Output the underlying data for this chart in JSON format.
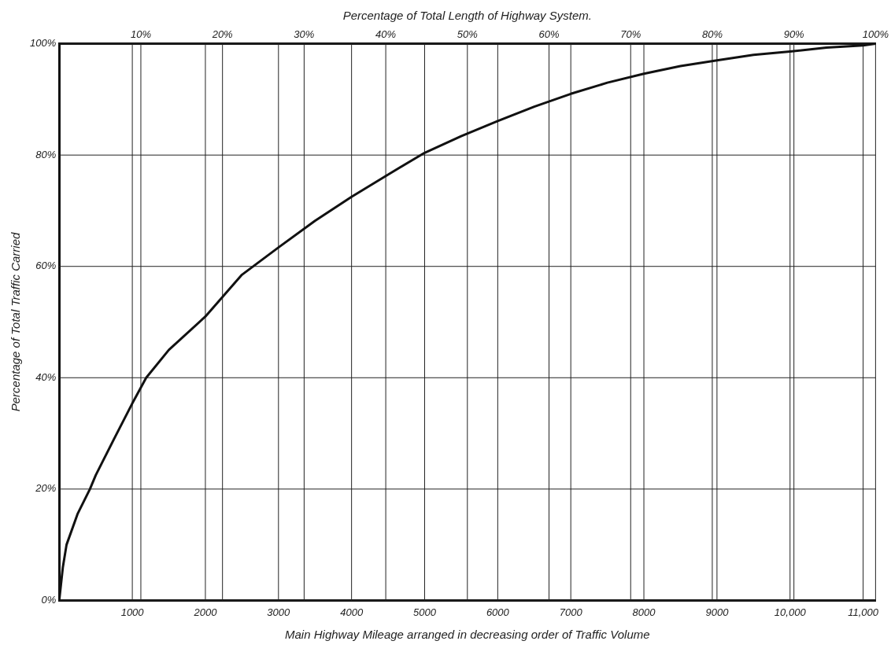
{
  "chart_data": {
    "type": "line",
    "x2label": "Percentage of Total Length of Highway System.",
    "xlabel": "Main Highway Mileage arranged in decreasing order of Traffic Volume",
    "ylabel": "Percentage of Total Traffic Carried",
    "x": [
      0,
      50,
      100,
      250,
      420,
      500,
      750,
      1000,
      1190,
      1500,
      2000,
      2500,
      3000,
      3500,
      4000,
      4500,
      5000,
      5500,
      6000,
      6500,
      7000,
      7500,
      8000,
      8500,
      9000,
      9500,
      10000,
      10500,
      11000,
      11170
    ],
    "series": [
      {
        "color": "#111111",
        "values": [
          0,
          6,
          10,
          15.5,
          20,
          22.5,
          29,
          35.4,
          40,
          45,
          51,
          58.5,
          63.4,
          68.2,
          72.5,
          76.5,
          80.4,
          83.4,
          86.1,
          88.7,
          91,
          93,
          94.6,
          96,
          97,
          98,
          98.6,
          99.3,
          99.7,
          100
        ]
      }
    ],
    "xlim": [
      0,
      11170
    ],
    "xticks": [
      {
        "value": 1000,
        "label": "1000"
      },
      {
        "value": 2000,
        "label": "2000"
      },
      {
        "value": 3000,
        "label": "3000"
      },
      {
        "value": 4000,
        "label": "4000"
      },
      {
        "value": 5000,
        "label": "5000"
      },
      {
        "value": 6000,
        "label": "6000"
      },
      {
        "value": 7000,
        "label": "7000"
      },
      {
        "value": 8000,
        "label": "8000"
      },
      {
        "value": 9000,
        "label": "9000"
      },
      {
        "value": 10000,
        "label": "10,000"
      },
      {
        "value": 11000,
        "label": "11,000"
      }
    ],
    "x2lim": [
      0,
      100
    ],
    "x2ticks": [
      {
        "value": 10,
        "label": "10%"
      },
      {
        "value": 20,
        "label": "20%"
      },
      {
        "value": 30,
        "label": "30%"
      },
      {
        "value": 40,
        "label": "40%"
      },
      {
        "value": 50,
        "label": "50%"
      },
      {
        "value": 60,
        "label": "60%"
      },
      {
        "value": 70,
        "label": "70%"
      },
      {
        "value": 80,
        "label": "80%"
      },
      {
        "value": 90,
        "label": "90%"
      },
      {
        "value": 100,
        "label": "100%"
      }
    ],
    "ylim": [
      0,
      100
    ],
    "yticks": [
      {
        "value": 0,
        "label": "0%"
      },
      {
        "value": 20,
        "label": "20%"
      },
      {
        "value": 40,
        "label": "40%"
      },
      {
        "value": 60,
        "label": "60%"
      },
      {
        "value": 80,
        "label": "80%"
      },
      {
        "value": 100,
        "label": "100%"
      }
    ],
    "grid": true,
    "line_style": "solid"
  }
}
